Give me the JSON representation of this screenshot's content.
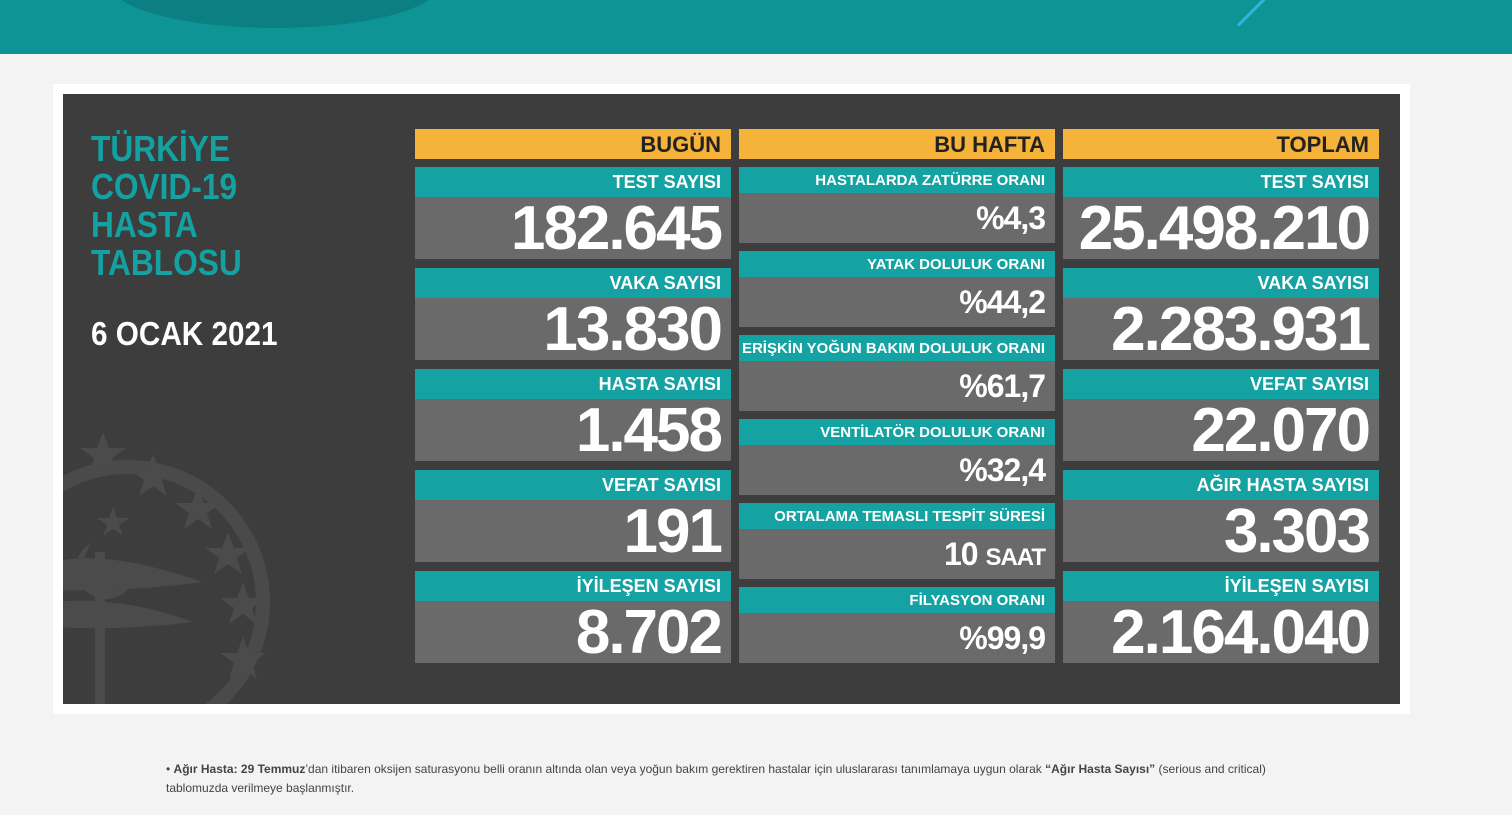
{
  "header": {
    "title_lines": [
      "TÜRKİYE",
      "COVID-19",
      "HASTA",
      "TABLOSU"
    ],
    "date": "6 OCAK 2021"
  },
  "columns": {
    "today": {
      "heading": "BUGÜN",
      "cards": [
        {
          "label": "TEST SAYISI",
          "value": "182.645"
        },
        {
          "label": "VAKA SAYISI",
          "value": "13.830"
        },
        {
          "label": "HASTA SAYISI",
          "value": "1.458"
        },
        {
          "label": "VEFAT SAYISI",
          "value": "191"
        },
        {
          "label": "İYİLEŞEN SAYISI",
          "value": "8.702"
        }
      ]
    },
    "week": {
      "heading": "BU HAFTA",
      "cards": [
        {
          "label": "HASTALARDA ZATÜRRE ORANI",
          "value": "%4,3"
        },
        {
          "label": "YATAK DOLULUK ORANI",
          "value": "%44,2"
        },
        {
          "label": "ERİŞKİN YOĞUN BAKIM DOLULUK ORANI",
          "value": "%61,7"
        },
        {
          "label": "VENTİLATÖR DOLULUK ORANI",
          "value": "%32,4"
        },
        {
          "label": "ORTALAMA TEMASLI TESPİT SÜRESİ",
          "value": "10",
          "unit": "SAAT"
        },
        {
          "label": "FİLYASYON ORANI",
          "value": "%99,9"
        }
      ]
    },
    "total": {
      "heading": "TOPLAM",
      "cards": [
        {
          "label": "TEST SAYISI",
          "value": "25.498.210"
        },
        {
          "label": "VAKA SAYISI",
          "value": "2.283.931"
        },
        {
          "label": "VEFAT SAYISI",
          "value": "22.070"
        },
        {
          "label": "AĞIR HASTA SAYISI",
          "value": "3.303"
        },
        {
          "label": "İYİLEŞEN SAYISI",
          "value": "2.164.040"
        }
      ]
    }
  },
  "footnote": {
    "bullet": "•",
    "bold_term": "Ağır Hasta:",
    "bold_date": "29 Temmuz",
    "text_1": "’dan itibaren oksijen saturasyonu belli oranın altında olan veya yoğun bakım gerektiren hastalar için uluslararası tanımlamaya uygun olarak ",
    "bold_quote": "“Ağır Hasta Sayısı”",
    "text_2": " (serious and critical) tablomuzda verilmeye başlanmıştır."
  },
  "colors": {
    "banner": "#0f9496",
    "board": "#3d3d3d",
    "teal_label": "#15a2a2",
    "value_bg": "#6a6a6a",
    "header_yellow": "#f6b33a"
  }
}
